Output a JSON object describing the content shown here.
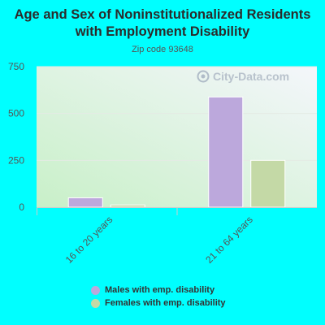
{
  "chart_data": {
    "type": "bar",
    "title": "Age and Sex of Noninstitutionalized Residents with Employment Disability",
    "subtitle": "Zip code 93648",
    "watermark": "City-Data.com",
    "categories": [
      "16 to 20 years",
      "21 to 64 years"
    ],
    "series": [
      {
        "name": "Males with emp. disability",
        "color": "#bca8dc",
        "values": [
          50,
          588
        ]
      },
      {
        "name": "Females with emp. disability",
        "color": "#c4d9a6",
        "values": [
          12,
          250
        ]
      }
    ],
    "yticks": [
      "0",
      "250",
      "500",
      "750"
    ],
    "ylim": [
      0,
      750
    ],
    "grid": true,
    "legend_position": "bottom"
  }
}
